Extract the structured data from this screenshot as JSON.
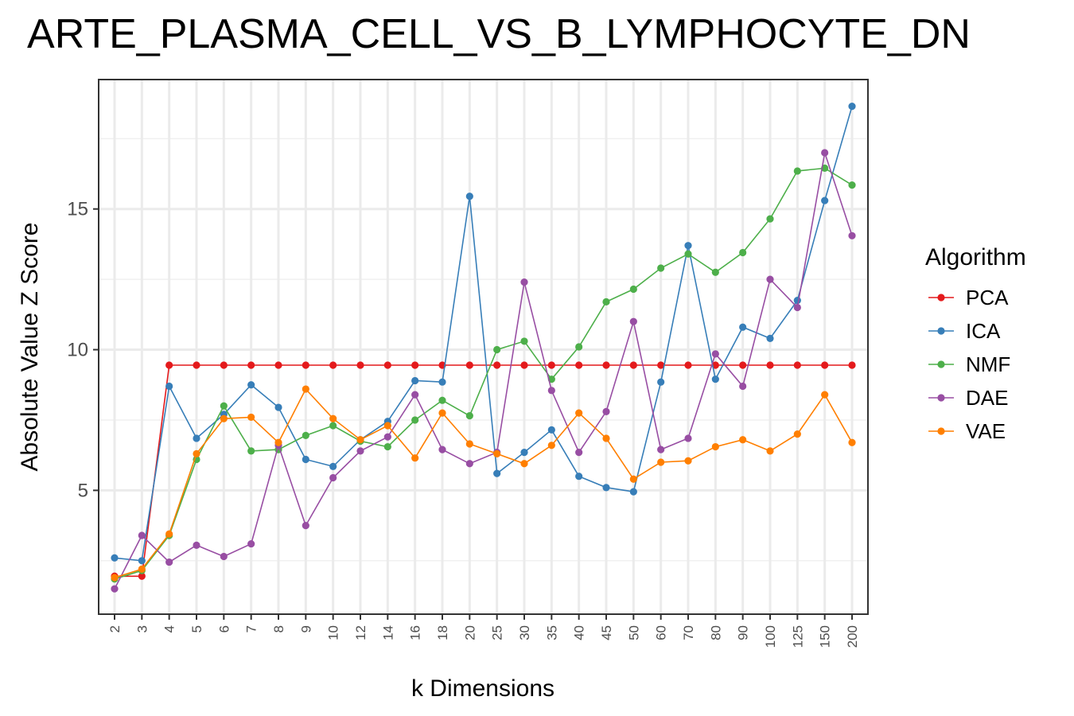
{
  "chart_data": {
    "type": "line",
    "title": "ARTE_PLASMA_CELL_VS_B_LYMPHOCYTE_DN",
    "xlabel": "k Dimensions",
    "ylabel": "Absolute Value Z Score",
    "categories": [
      "2",
      "3",
      "4",
      "5",
      "6",
      "7",
      "8",
      "9",
      "10",
      "12",
      "14",
      "16",
      "18",
      "20",
      "25",
      "30",
      "35",
      "40",
      "45",
      "50",
      "60",
      "70",
      "80",
      "90",
      "100",
      "125",
      "150",
      "200"
    ],
    "yticks": [
      5,
      10,
      15
    ],
    "ylim": [
      0.6,
      19.6
    ],
    "grid": true,
    "legend": {
      "title": "Algorithm",
      "position": "right"
    },
    "series": [
      {
        "name": "PCA",
        "color": "#e41a1c",
        "values": [
          1.95,
          1.95,
          9.45,
          9.45,
          9.45,
          9.45,
          9.45,
          9.45,
          9.45,
          9.45,
          9.45,
          9.45,
          9.45,
          9.45,
          9.45,
          9.45,
          9.45,
          9.45,
          9.45,
          9.45,
          9.45,
          9.45,
          9.45,
          9.45,
          9.45,
          9.45,
          9.45,
          9.45
        ]
      },
      {
        "name": "ICA",
        "color": "#377eb8",
        "values": [
          2.6,
          2.5,
          8.7,
          6.85,
          7.7,
          8.75,
          7.95,
          6.1,
          5.85,
          6.8,
          7.45,
          8.9,
          8.85,
          15.45,
          5.6,
          6.35,
          7.15,
          5.5,
          5.1,
          4.95,
          8.85,
          13.7,
          8.95,
          10.8,
          10.4,
          11.75,
          15.3,
          18.65
        ]
      },
      {
        "name": "NMF",
        "color": "#4daf4a",
        "values": [
          1.85,
          2.15,
          3.4,
          6.1,
          8.0,
          6.4,
          6.45,
          6.95,
          7.3,
          6.75,
          6.55,
          7.5,
          8.2,
          7.65,
          10.0,
          10.3,
          8.95,
          10.1,
          11.7,
          12.15,
          12.9,
          13.4,
          12.75,
          13.45,
          14.65,
          16.35,
          16.45,
          15.85
        ]
      },
      {
        "name": "DAE",
        "color": "#984ea3",
        "values": [
          1.5,
          3.4,
          2.45,
          3.05,
          2.65,
          3.1,
          6.6,
          3.75,
          5.45,
          6.4,
          6.9,
          8.4,
          6.45,
          5.95,
          6.35,
          12.4,
          8.55,
          6.35,
          7.8,
          11.0,
          6.45,
          6.85,
          9.85,
          8.7,
          12.5,
          11.5,
          17.0,
          14.05
        ]
      },
      {
        "name": "VAE",
        "color": "#ff7f00",
        "values": [
          1.9,
          2.2,
          3.45,
          6.3,
          7.55,
          7.6,
          6.7,
          8.6,
          7.55,
          6.8,
          7.3,
          6.15,
          7.75,
          6.65,
          6.3,
          5.95,
          6.6,
          7.75,
          6.85,
          5.4,
          6.0,
          6.05,
          6.55,
          6.8,
          6.4,
          7.0,
          8.4,
          6.7
        ]
      }
    ]
  }
}
